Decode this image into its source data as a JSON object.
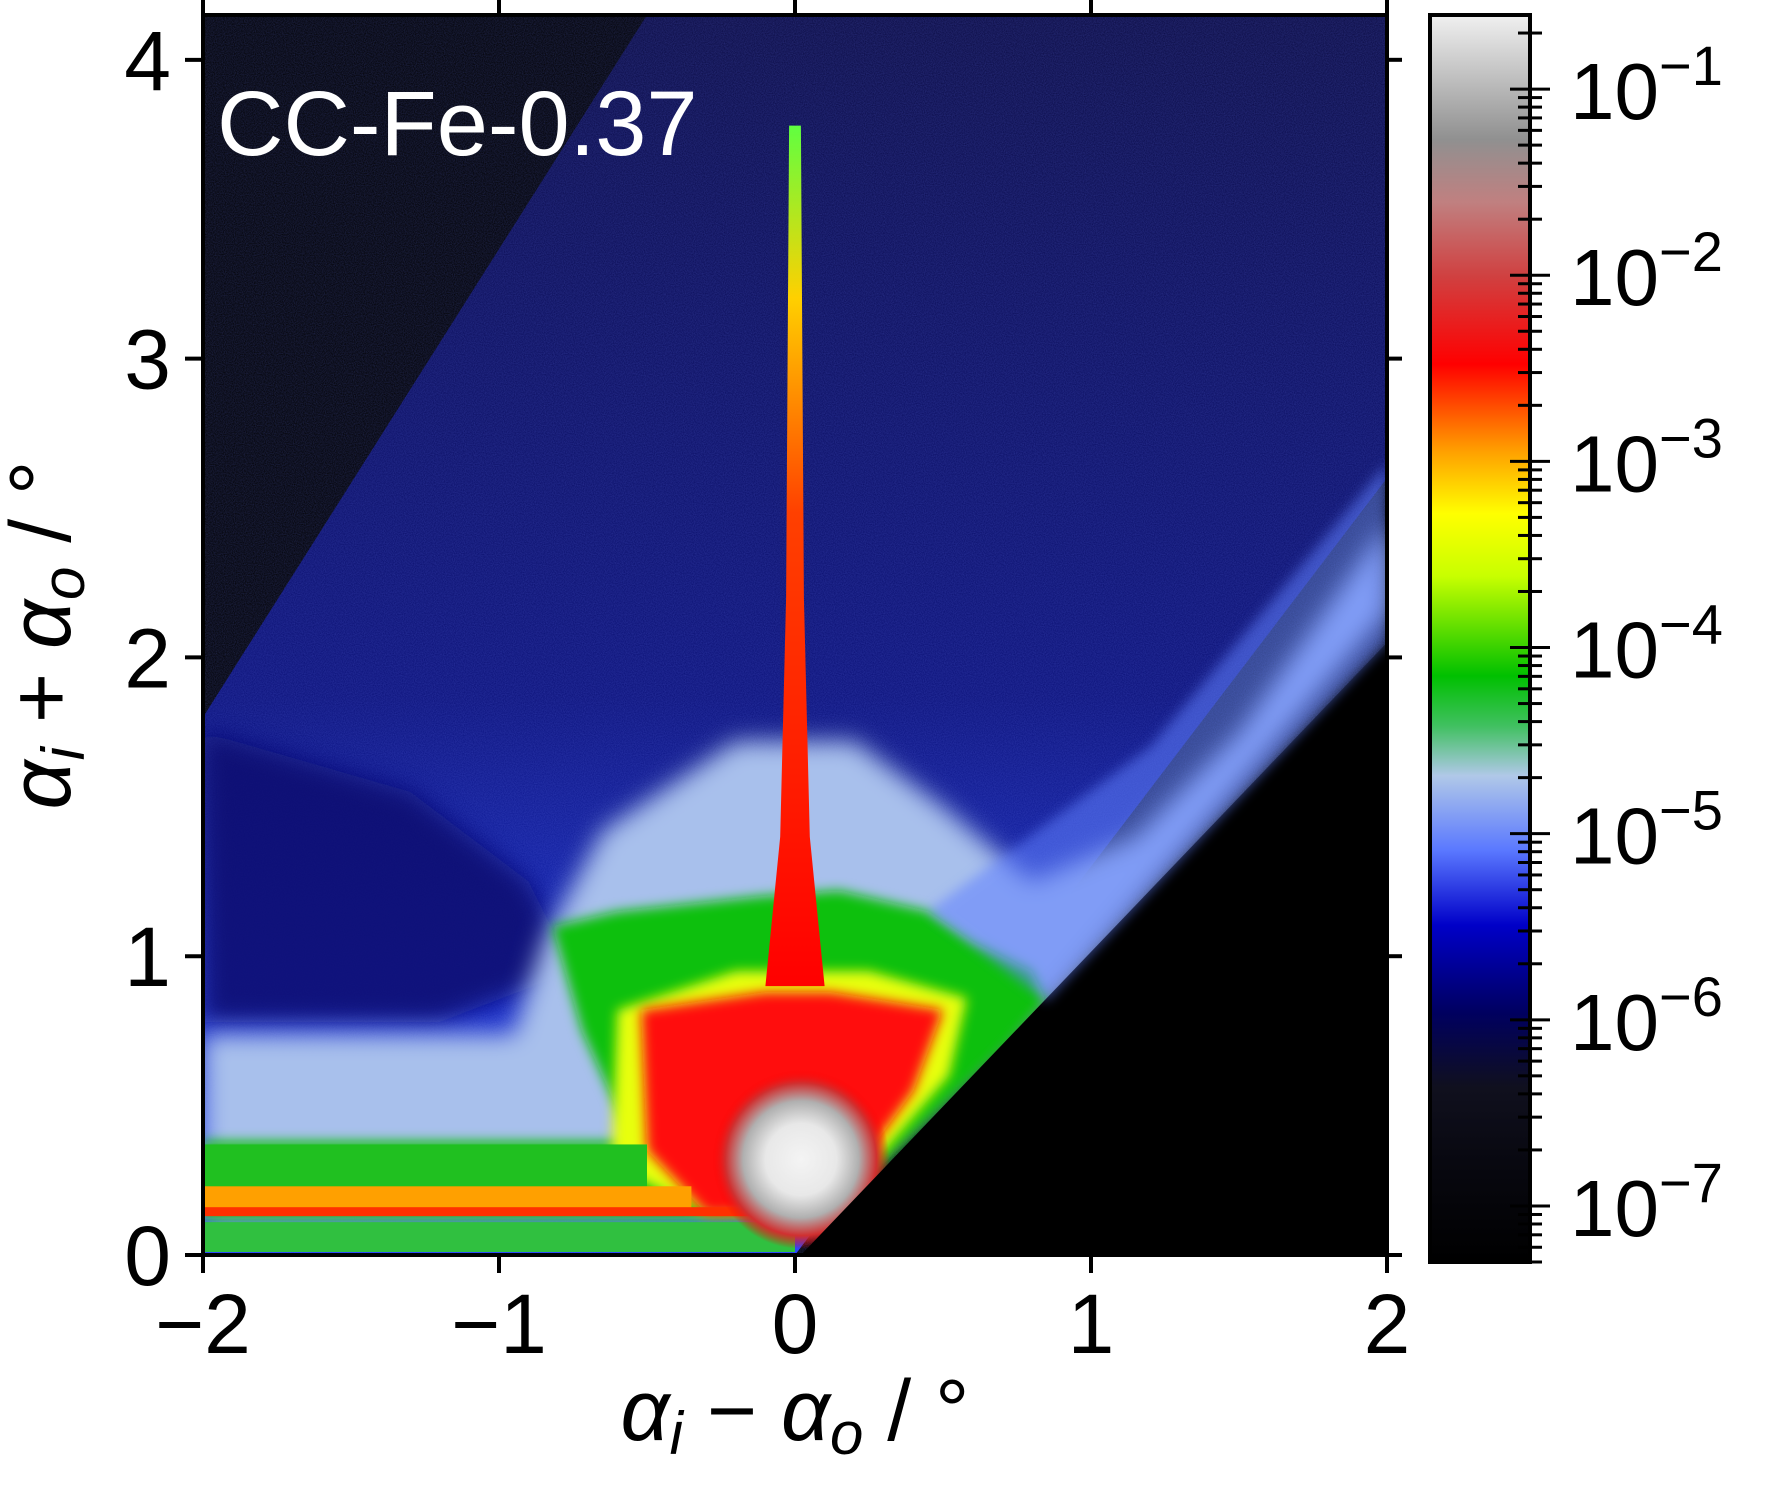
{
  "chart_data": {
    "type": "heatmap",
    "title": "",
    "annotation": "CC-Fe-0.37",
    "xlabel": {
      "main": "α",
      "sub1": "i",
      "op": " − ",
      "main2": "α",
      "sub2": "o",
      "unit": " / °"
    },
    "ylabel": {
      "main": "α",
      "sub1": "i",
      "op": " + ",
      "main2": "α",
      "sub2": "o",
      "unit": " / °"
    },
    "xlim": [
      -2,
      2
    ],
    "ylim": [
      0,
      4.15
    ],
    "xticks": [
      "−2",
      "−1",
      "0",
      "1",
      "2"
    ],
    "xtick_values": [
      -2,
      -1,
      0,
      1,
      2
    ],
    "yticks": [
      "0",
      "1",
      "2",
      "3",
      "4"
    ],
    "ytick_values": [
      0,
      1,
      2,
      3,
      4
    ],
    "colorbar": {
      "scale": "log",
      "range": [
        5e-08,
        0.25
      ],
      "labels": [
        {
          "value": 1e-07,
          "base": "10",
          "exp": "−7"
        },
        {
          "value": 1e-06,
          "base": "10",
          "exp": "−6"
        },
        {
          "value": 1e-05,
          "base": "10",
          "exp": "−5"
        },
        {
          "value": 0.0001,
          "base": "10",
          "exp": "−4"
        },
        {
          "value": 0.001,
          "base": "10",
          "exp": "−3"
        },
        {
          "value": 0.01,
          "base": "10",
          "exp": "−2"
        },
        {
          "value": 0.1,
          "base": "10",
          "exp": "−1"
        }
      ],
      "colors": [
        "#000000",
        "#10101e",
        "#0000c8",
        "#5a78ff",
        "#b0c8e8",
        "#00c000",
        "#c8ff00",
        "#ffff00",
        "#ffa000",
        "#ff0000",
        "#d04040",
        "#909090",
        "#f0f0f0"
      ]
    },
    "features": [
      {
        "name": "specular-ridge",
        "x": 0.0,
        "y_range": [
          0.6,
          3.78
        ],
        "level": "1e-3 to 1e-2"
      },
      {
        "name": "specular-peak",
        "x": 0.0,
        "y": 0.32,
        "level": "1e-1"
      },
      {
        "name": "yoneda-band",
        "y_range": [
          0.15,
          0.22
        ],
        "x_range": [
          -2,
          0
        ],
        "level": "1e-3"
      },
      {
        "name": "off-specular-shoulder",
        "y_range": [
          0.3,
          0.75
        ],
        "x_range": [
          -2,
          -0.5
        ],
        "level": "1e-5 to 1e-4"
      }
    ]
  }
}
